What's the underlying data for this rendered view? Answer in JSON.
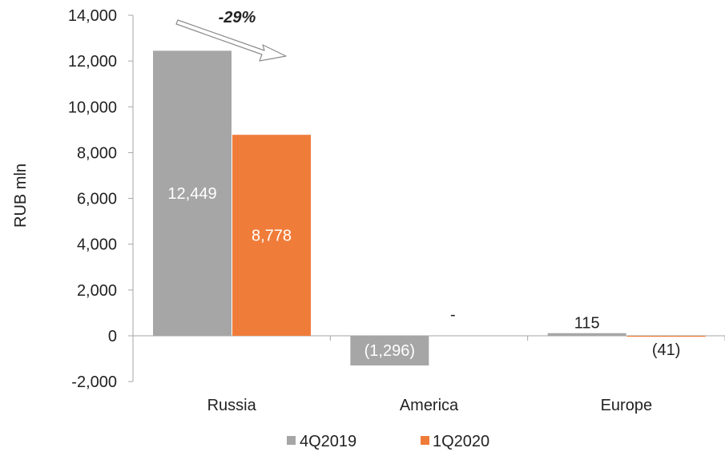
{
  "chart_data": {
    "type": "bar",
    "categories": [
      "Russia",
      "America",
      "Europe"
    ],
    "series": [
      {
        "name": "4Q2019",
        "color": "#a6a6a6",
        "values": [
          12449,
          -1296,
          115
        ],
        "labels": [
          "12,449",
          "(1,296)",
          "115"
        ]
      },
      {
        "name": "1Q2020",
        "color": "#f07c3a",
        "values": [
          8778,
          0,
          -41
        ],
        "labels": [
          "8,778",
          "-",
          "(41)"
        ]
      }
    ],
    "title": "",
    "xlabel": "",
    "ylabel": "RUB mln",
    "ylim": [
      -2000,
      14000
    ],
    "yticks": [
      -2000,
      0,
      2000,
      4000,
      6000,
      8000,
      10000,
      12000,
      14000
    ],
    "ytick_labels": [
      "-2,000",
      "0",
      "2,000",
      "4,000",
      "6,000",
      "8,000",
      "10,000",
      "12,000",
      "14,000"
    ],
    "grid": false,
    "legend_position": "bottom",
    "annotation": {
      "text": "-29%",
      "from": "Russia 4Q2019",
      "to": "Russia 1Q2020"
    }
  }
}
